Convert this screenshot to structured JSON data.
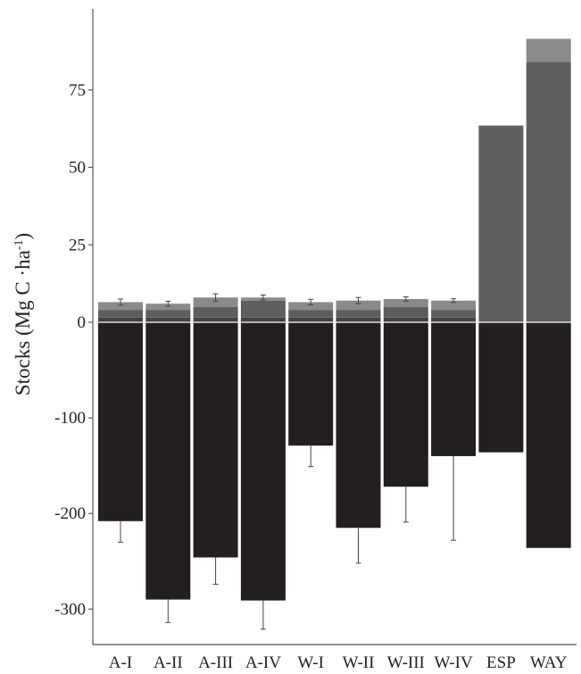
{
  "chart_data": {
    "type": "bar",
    "stacked": true,
    "ylabel": "Stocks (Mg C ·ha",
    "ylabel_sup": "-1",
    "ylabel_close": ")",
    "categories": [
      "A-I",
      "A-II",
      "A-III",
      "A-IV",
      "W-I",
      "W-II",
      "W-III",
      "W-IV",
      "ESP",
      "WAY"
    ],
    "y_ticks": [
      75,
      50,
      25,
      0,
      -100,
      -200,
      -300
    ],
    "positive_segments": {
      "dark": [
        1.5,
        1.5,
        1.5,
        1.5,
        1.5,
        1.5,
        1.5,
        1.5,
        0,
        0
      ],
      "mid": [
        2.5,
        2.5,
        3.5,
        5.5,
        2.5,
        2.5,
        3.5,
        2.5,
        63.5,
        84
      ],
      "light": [
        2.5,
        2.0,
        3.0,
        1.0,
        2.5,
        3.0,
        2.5,
        3.0,
        0,
        7.5
      ]
    },
    "positive_error": [
      1.0,
      0.8,
      1.2,
      0.8,
      0.9,
      1.0,
      0.7,
      0.6,
      0,
      0
    ],
    "negative_values": [
      -208,
      -290,
      -246,
      -291,
      -129,
      -215,
      -172,
      -140,
      -136,
      -236
    ],
    "negative_error": [
      22,
      24,
      28,
      30,
      22,
      37,
      37,
      88,
      0,
      0
    ],
    "colors": {
      "negative": "#231f20",
      "dark": "#414141",
      "mid": "#5e5e5e",
      "light": "#8a8a8a"
    }
  }
}
